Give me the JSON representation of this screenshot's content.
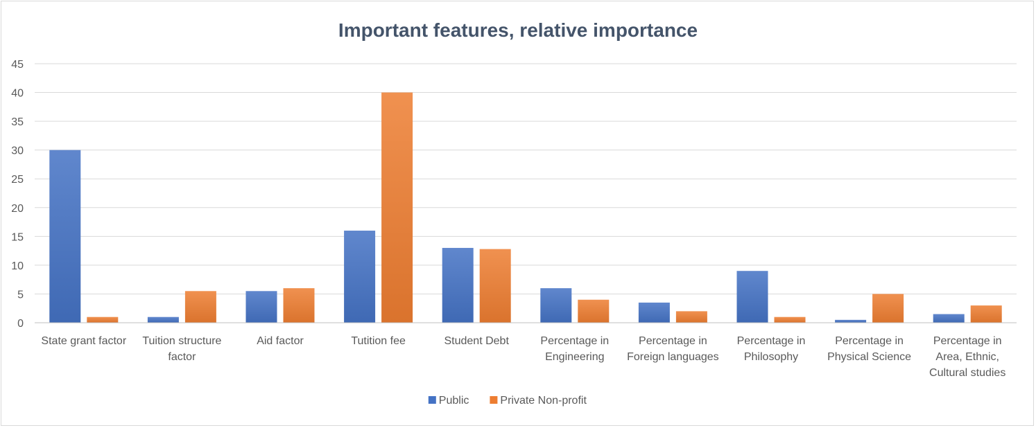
{
  "chart_data": {
    "type": "bar",
    "title": "Important features, relative importance",
    "xlabel": "",
    "ylabel": "",
    "ylim": [
      0,
      45
    ],
    "yticks": [
      0,
      5,
      10,
      15,
      20,
      25,
      30,
      35,
      40,
      45
    ],
    "grid": true,
    "legend_position": "bottom",
    "categories": [
      [
        "State grant factor"
      ],
      [
        "Tuition structure",
        "factor"
      ],
      [
        "Aid factor"
      ],
      [
        "Tutition fee"
      ],
      [
        "Student Debt"
      ],
      [
        "Percentage in",
        "Engineering"
      ],
      [
        "Percentage in",
        "Foreign languages"
      ],
      [
        "Percentage in",
        "Philosophy"
      ],
      [
        "Percentage in",
        "Physical Science"
      ],
      [
        "Percentage in",
        "Area, Ethnic,",
        "Cultural studies"
      ]
    ],
    "series": [
      {
        "name": "Public",
        "color": "#4472c4",
        "values": [
          30,
          1,
          5.5,
          16,
          13,
          6,
          3.5,
          9,
          0.5,
          1.5
        ]
      },
      {
        "name": "Private Non-profit",
        "color": "#ed7d31",
        "values": [
          1,
          5.5,
          6,
          40,
          12.8,
          4,
          2,
          1,
          5,
          3
        ]
      }
    ]
  }
}
